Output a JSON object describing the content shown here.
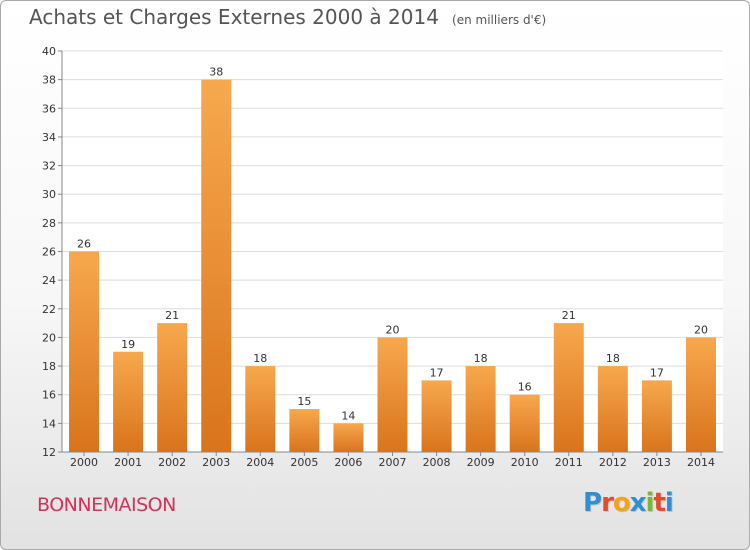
{
  "title": "Achats et Charges Externes 2000 à 2014",
  "unit": "(en milliers d'€)",
  "place": "BONNEMAISON",
  "brand": {
    "text": "Proxiti",
    "letters": [
      {
        "ch": "P",
        "color": "#2f8fd0"
      },
      {
        "ch": "r",
        "color": "#e24b2b"
      },
      {
        "ch": "o",
        "color": "#f2a31b"
      },
      {
        "ch": "x",
        "color": "#2f8fd0"
      },
      {
        "ch": "i",
        "color": "#7ab92f"
      },
      {
        "ch": "t",
        "color": "#e24b2b"
      },
      {
        "ch": "i",
        "color": "#2f8fd0"
      }
    ]
  },
  "colors": {
    "bar_light": "#f7a84e",
    "bar_dark": "#d9741b",
    "grid": "#dddddd",
    "place": "#d4325a"
  },
  "chart_data": {
    "type": "bar",
    "categories": [
      "2000",
      "2001",
      "2002",
      "2003",
      "2004",
      "2005",
      "2006",
      "2007",
      "2008",
      "2009",
      "2010",
      "2011",
      "2012",
      "2013",
      "2014"
    ],
    "values": [
      26,
      19,
      21,
      38,
      18,
      15,
      14,
      20,
      17,
      18,
      16,
      21,
      18,
      17,
      20
    ],
    "ylim": [
      12,
      40
    ],
    "yticks": [
      12,
      14,
      16,
      18,
      20,
      22,
      24,
      26,
      28,
      30,
      32,
      34,
      36,
      38,
      40
    ],
    "grid": true,
    "xlabel": "",
    "ylabel": ""
  }
}
